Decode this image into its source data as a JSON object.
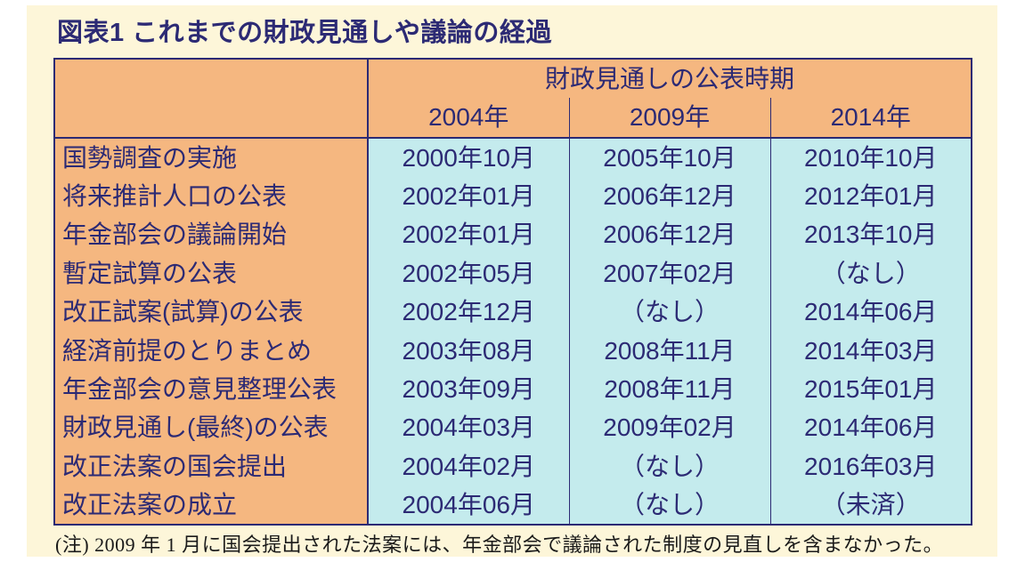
{
  "page_background_color": "#fdf6d9",
  "text_color": "#2c2a74",
  "header_bg_color": "#f5b780",
  "label_bg_color": "#f5b780",
  "value_bg_color": "#c4ebed",
  "border_color": "#2c2a74",
  "note_color": "#1a1a1a",
  "table": {
    "type": "table",
    "title": "図表1  これまでの財政見通しや議論の経過",
    "header_top": "財政見通しの公表時期",
    "header_years": [
      "2004年",
      "2009年",
      "2014年"
    ],
    "rows": [
      {
        "label": "国勢調査の実施",
        "bold": false,
        "cells": [
          "2000年10月",
          "2005年10月",
          "2010年10月"
        ]
      },
      {
        "label": "将来推計人口の公表",
        "bold": false,
        "cells": [
          "2002年01月",
          "2006年12月",
          "2012年01月"
        ]
      },
      {
        "label": "年金部会の議論開始",
        "bold": true,
        "cells": [
          "2002年01月",
          "2006年12月",
          "2013年10月"
        ]
      },
      {
        "label": "暫定試算の公表",
        "bold": false,
        "cells": [
          "2002年05月",
          "2007年02月",
          "（なし）"
        ]
      },
      {
        "label": "改正試案(試算)の公表",
        "bold": false,
        "cells": [
          "2002年12月",
          "（なし）",
          "2014年06月"
        ]
      },
      {
        "label": "経済前提のとりまとめ",
        "bold": false,
        "cells": [
          "2003年08月",
          "2008年11月",
          "2014年03月"
        ]
      },
      {
        "label": "年金部会の意見整理公表",
        "bold": true,
        "cells": [
          "2003年09月",
          "2008年11月",
          "2015年01月"
        ]
      },
      {
        "label": "財政見通し(最終)の公表",
        "bold": true,
        "cells": [
          "2004年03月",
          "2009年02月",
          "2014年06月"
        ]
      },
      {
        "label": "改正法案の国会提出",
        "bold": false,
        "cells": [
          "2004年02月",
          "（なし）",
          "2016年03月"
        ]
      },
      {
        "label": "改正法案の成立",
        "bold": false,
        "cells": [
          "2004年06月",
          "（なし）",
          "（未済）"
        ]
      }
    ],
    "note": "(注) 2009 年 1 月に国会提出された法案には、年金部会で議論された制度の見直しを含まなかった。"
  }
}
